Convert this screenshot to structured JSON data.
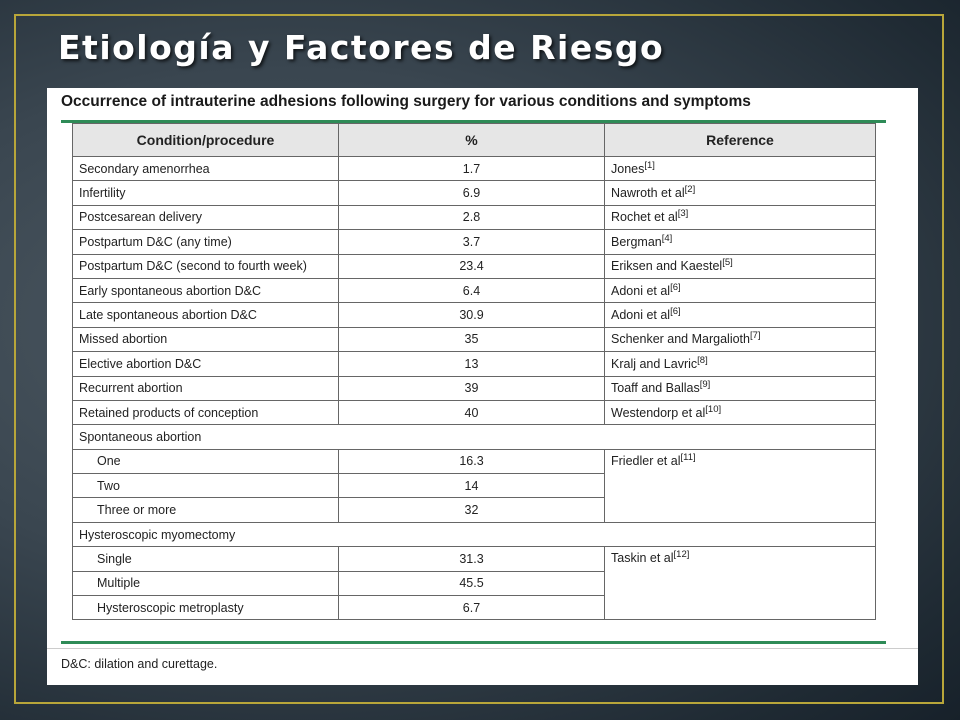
{
  "slide": {
    "title": "Etiología y Factores de Riesgo"
  },
  "table": {
    "caption": "Occurrence of intrauterine adhesions following surgery for various conditions and symptoms",
    "headers": [
      "Condition/procedure",
      "%",
      "Reference"
    ],
    "rows": [
      {
        "condition": "Secondary amenorrhea",
        "pct": "1.7",
        "ref": "Jones",
        "cite": "[1]"
      },
      {
        "condition": "Infertility",
        "pct": "6.9",
        "ref": "Nawroth et al",
        "cite": "[2]"
      },
      {
        "condition": "Postcesarean delivery",
        "pct": "2.8",
        "ref": "Rochet et al",
        "cite": "[3]"
      },
      {
        "condition": "Postpartum D&C (any time)",
        "pct": "3.7",
        "ref": "Bergman",
        "cite": "[4]"
      },
      {
        "condition": "Postpartum D&C (second to fourth week)",
        "pct": "23.4",
        "ref": "Eriksen and Kaestel",
        "cite": "[5]"
      },
      {
        "condition": "Early spontaneous abortion D&C",
        "pct": "6.4",
        "ref": "Adoni et al",
        "cite": "[6]"
      },
      {
        "condition": "Late spontaneous abortion D&C",
        "pct": "30.9",
        "ref": "Adoni et al",
        "cite": "[6]"
      },
      {
        "condition": "Missed abortion",
        "pct": "35",
        "ref": "Schenker and Margalioth",
        "cite": "[7]"
      },
      {
        "condition": "Elective abortion D&C",
        "pct": "13",
        "ref": "Kralj and Lavric",
        "cite": "[8]"
      },
      {
        "condition": "Recurrent abortion",
        "pct": "39",
        "ref": "Toaff and Ballas",
        "cite": "[9]"
      },
      {
        "condition": "Retained products of conception",
        "pct": "40",
        "ref": "Westendorp et al",
        "cite": "[10]"
      }
    ],
    "group_spont": {
      "label": "Spontaneous abortion",
      "rows": [
        {
          "condition": "One",
          "pct": "16.3"
        },
        {
          "condition": "Two",
          "pct": "14"
        },
        {
          "condition": "Three or more",
          "pct": "32"
        }
      ],
      "ref": "Friedler et al",
      "cite": "[11]"
    },
    "group_hyst": {
      "label": "Hysteroscopic myomectomy",
      "rows": [
        {
          "condition": "Single",
          "pct": "31.3"
        },
        {
          "condition": "Multiple",
          "pct": "45.5"
        },
        {
          "condition": "Hysteroscopic metroplasty",
          "pct": "6.7"
        }
      ],
      "ref": "Taskin et al",
      "cite": "[12]"
    },
    "footnote": "D&C: dilation and curettage."
  },
  "colors": {
    "accent_rule": "#2e8b57",
    "frame": "#b8a63a",
    "header_bg": "#e6e6e6"
  }
}
